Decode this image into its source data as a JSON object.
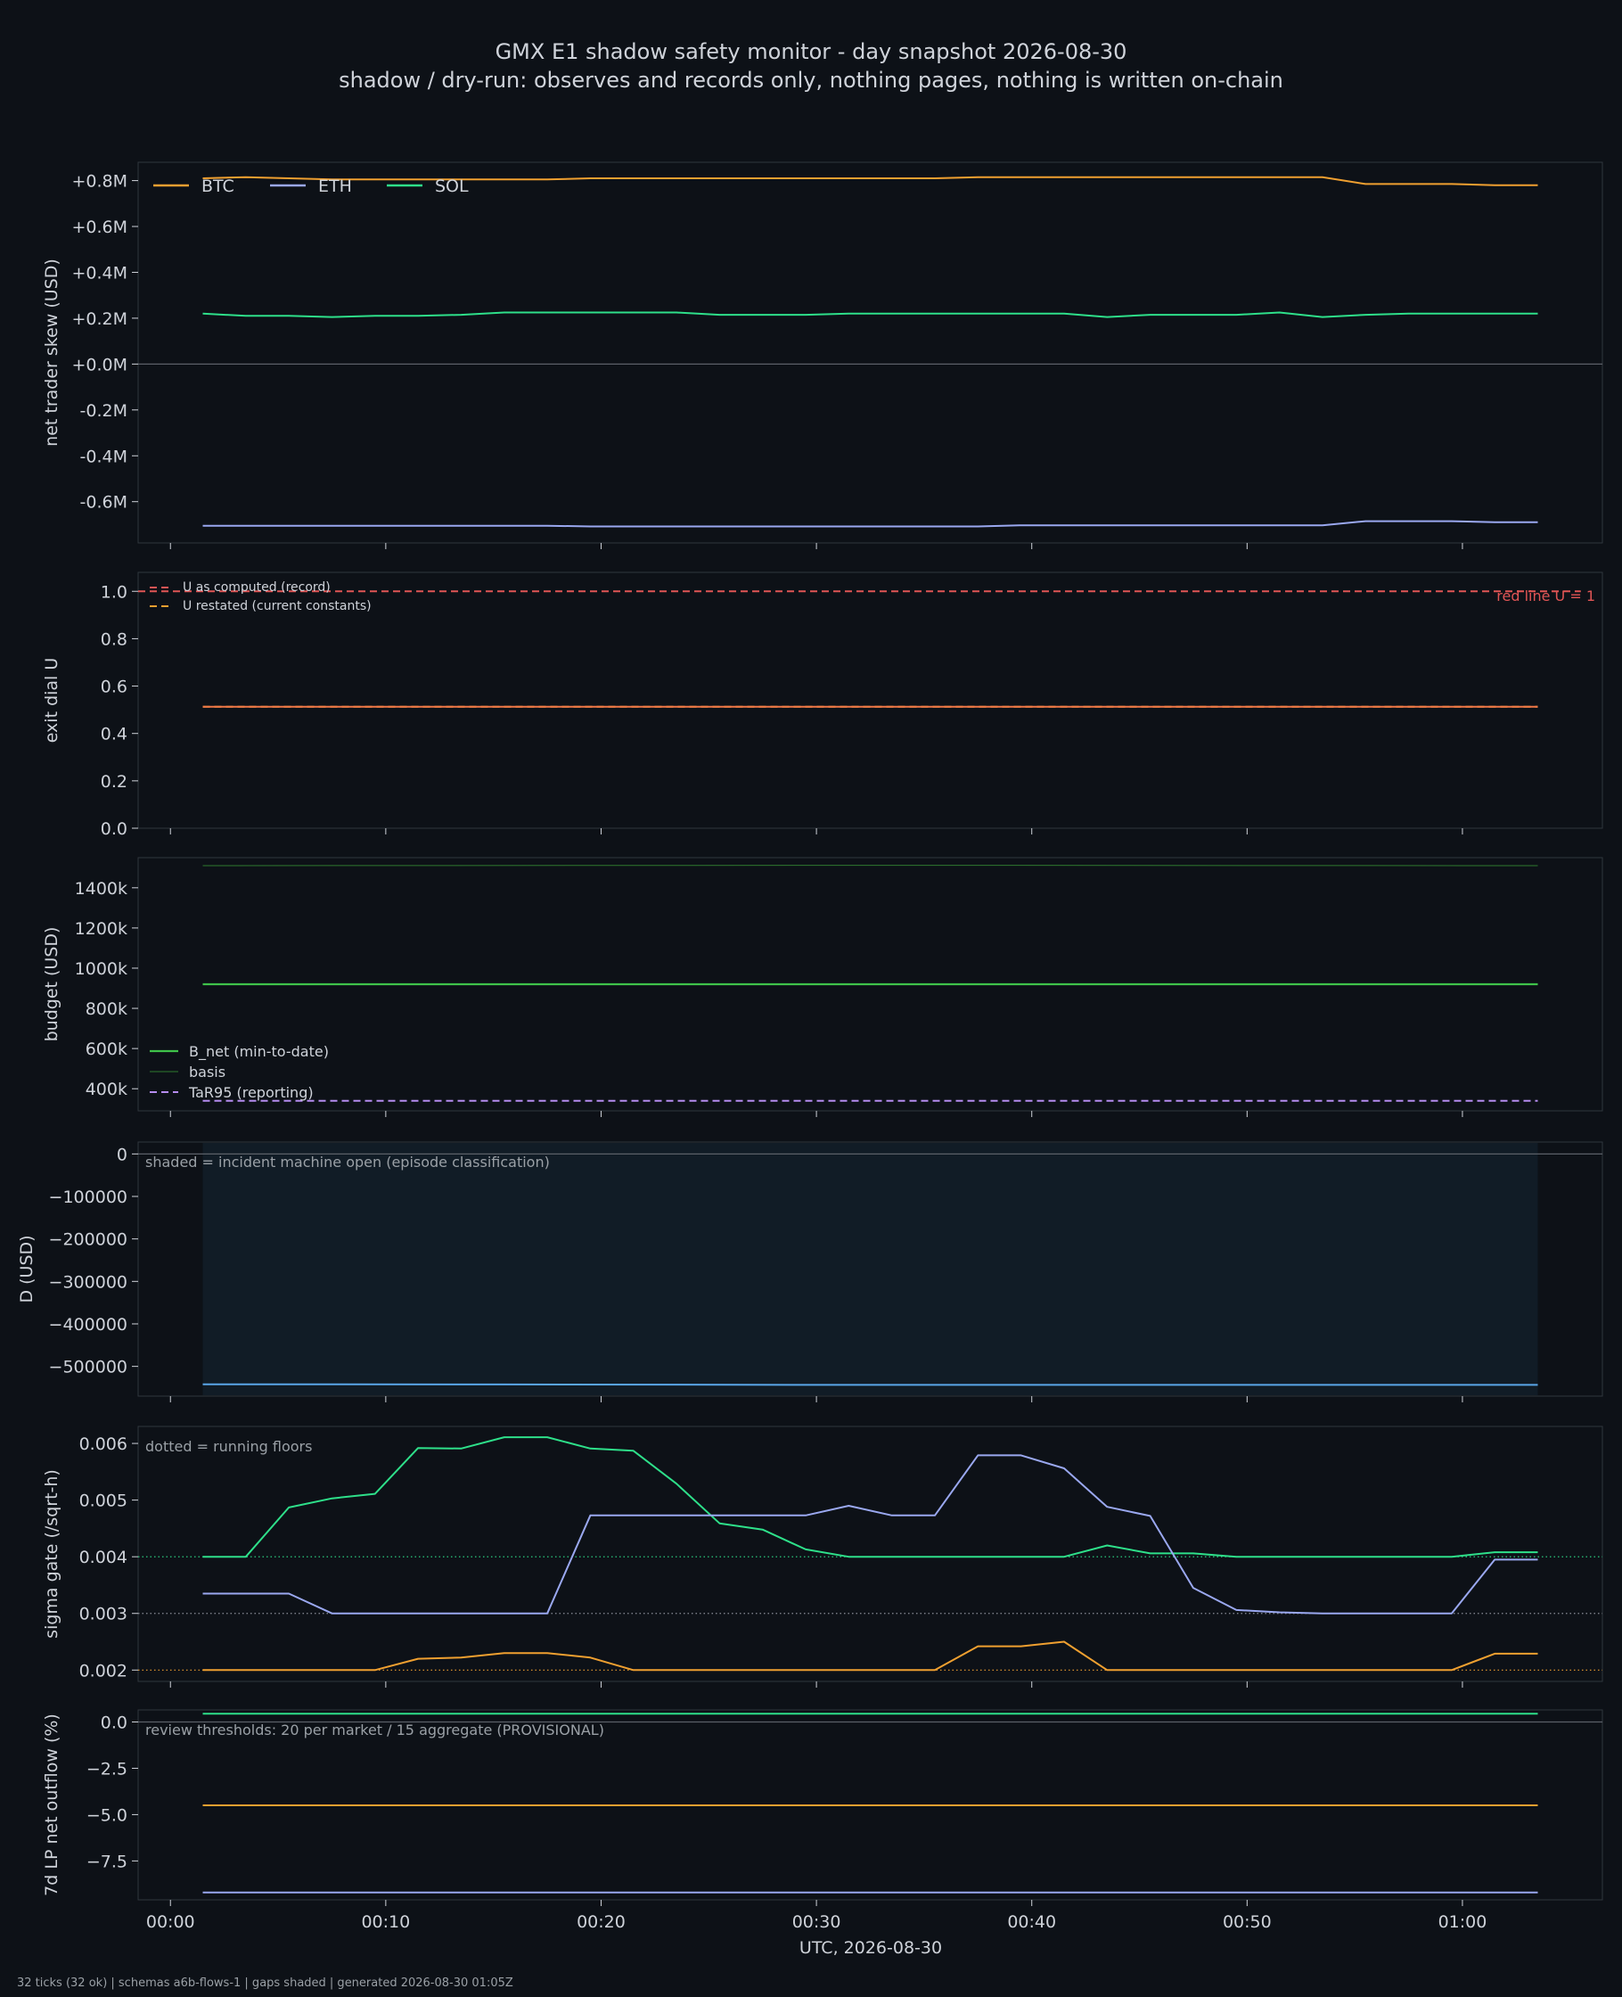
{
  "header": {
    "title": "GMX E1 shadow safety monitor - day snapshot 2026-08-30",
    "subtitle": "shadow / dry-run: observes and records only, nothing pages, nothing is written on-chain"
  },
  "footer": {
    "text": "32 ticks (32 ok) | schemas a6b-flows-1 | gaps shaded | generated 2026-08-30 01:05Z"
  },
  "colors": {
    "background": "#0d1117",
    "panel_border": "#30363d",
    "text": "#cfd3da",
    "muted": "#9aa0a6",
    "btc": "#f0a030",
    "eth": "#9aa8f0",
    "sol": "#2ee08a",
    "redline": "#e05555",
    "b_net": "#3fc24a",
    "basis": "#2f7a2f",
    "tar95": "#b58cf0",
    "d": "#5aa6e8",
    "shade": "#111c26"
  },
  "chart_data": [
    {
      "id": "skew",
      "type": "line",
      "ylabel": "net trader skew (USD)",
      "ylim": [
        -0.78,
        0.88
      ],
      "yticks": [
        {
          "v": 0.8,
          "label": "+0.8M"
        },
        {
          "v": 0.6,
          "label": "+0.6M"
        },
        {
          "v": 0.4,
          "label": "+0.4M"
        },
        {
          "v": 0.2,
          "label": "+0.2M"
        },
        {
          "v": 0.0,
          "label": "+0.0M"
        },
        {
          "v": -0.2,
          "label": "-0.2M"
        },
        {
          "v": -0.4,
          "label": "-0.4M"
        },
        {
          "v": -0.6,
          "label": "-0.6M"
        }
      ],
      "zero_line": true,
      "legend": {
        "placement": "top-left",
        "orientation": "horizontal"
      },
      "x": [
        1.5,
        63.5
      ],
      "series": [
        {
          "name": "BTC",
          "color": "btc",
          "style": "solid",
          "points": [
            [
              1.5,
              0.81
            ],
            [
              3.5,
              0.815
            ],
            [
              5.5,
              0.81
            ],
            [
              7.5,
              0.805
            ],
            [
              11.5,
              0.805
            ],
            [
              17.5,
              0.805
            ],
            [
              19.5,
              0.81
            ],
            [
              35.5,
              0.81
            ],
            [
              37.5,
              0.815
            ],
            [
              53.5,
              0.815
            ],
            [
              55.5,
              0.785
            ],
            [
              59.5,
              0.785
            ],
            [
              61.5,
              0.78
            ],
            [
              63.5,
              0.78
            ]
          ]
        },
        {
          "name": "ETH",
          "color": "eth",
          "style": "solid",
          "points": [
            [
              1.5,
              -0.705
            ],
            [
              17.5,
              -0.705
            ],
            [
              19.5,
              -0.708
            ],
            [
              37.5,
              -0.708
            ],
            [
              39.5,
              -0.703
            ],
            [
              53.5,
              -0.703
            ],
            [
              55.5,
              -0.685
            ],
            [
              59.5,
              -0.685
            ],
            [
              61.5,
              -0.69
            ],
            [
              63.5,
              -0.69
            ]
          ]
        },
        {
          "name": "SOL",
          "color": "sol",
          "style": "solid",
          "points": [
            [
              1.5,
              0.22
            ],
            [
              3.5,
              0.21
            ],
            [
              5.5,
              0.21
            ],
            [
              7.5,
              0.205
            ],
            [
              9.5,
              0.21
            ],
            [
              11.5,
              0.21
            ],
            [
              13.5,
              0.215
            ],
            [
              15.5,
              0.225
            ],
            [
              23.5,
              0.225
            ],
            [
              25.5,
              0.215
            ],
            [
              29.5,
              0.215
            ],
            [
              31.5,
              0.22
            ],
            [
              41.5,
              0.22
            ],
            [
              43.5,
              0.205
            ],
            [
              45.5,
              0.215
            ],
            [
              49.5,
              0.215
            ],
            [
              51.5,
              0.225
            ],
            [
              53.5,
              0.205
            ],
            [
              55.5,
              0.215
            ],
            [
              57.5,
              0.22
            ],
            [
              63.5,
              0.22
            ]
          ]
        }
      ]
    },
    {
      "id": "exit_dial",
      "type": "line",
      "ylabel": "exit dial U",
      "ylim": [
        0,
        1.08
      ],
      "yticks": [
        {
          "v": 1.0,
          "label": "1.0"
        },
        {
          "v": 0.8,
          "label": "0.8"
        },
        {
          "v": 0.6,
          "label": "0.6"
        },
        {
          "v": 0.4,
          "label": "0.4"
        },
        {
          "v": 0.2,
          "label": "0.2"
        },
        {
          "v": 0.0,
          "label": "0.0"
        }
      ],
      "legend": {
        "placement": "top-left",
        "small": true
      },
      "annotation": {
        "text": "red line U = 1",
        "placement": "top-right"
      },
      "series": [
        {
          "name": "U as computed (record)",
          "color": "redline",
          "style": "dashed",
          "points": [
            [
              -1.5,
              1.0
            ],
            [
              65.5,
              1.0
            ]
          ],
          "legend_color": "redline"
        },
        {
          "name": "U restated (current constants)",
          "color": "btc",
          "style": "dashed",
          "points": [
            [
              1.5,
              0.513
            ],
            [
              63.5,
              0.513
            ]
          ]
        },
        {
          "name": "",
          "color": "#f07848",
          "style": "solid",
          "legend": false,
          "points": [
            [
              1.5,
              0.513
            ],
            [
              63.5,
              0.513
            ]
          ]
        }
      ]
    },
    {
      "id": "budget",
      "type": "line",
      "ylabel": "budget (USD)",
      "ylim": [
        290,
        1550
      ],
      "yticks": [
        {
          "v": 1400,
          "label": "1400k"
        },
        {
          "v": 1200,
          "label": "1200k"
        },
        {
          "v": 1000,
          "label": "1000k"
        },
        {
          "v": 800,
          "label": "800k"
        },
        {
          "v": 600,
          "label": "600k"
        },
        {
          "v": 400,
          "label": "400k"
        }
      ],
      "legend": {
        "placement": "bottom-left",
        "vertical": true
      },
      "series": [
        {
          "name": "B_net (min-to-date)",
          "color": "b_net",
          "style": "solid",
          "width": 2.2,
          "points": [
            [
              1.5,
              920
            ],
            [
              63.5,
              920
            ]
          ]
        },
        {
          "name": "basis",
          "color": "basis",
          "style": "solid",
          "width": 1,
          "points": [
            [
              1.5,
              1510
            ],
            [
              33.5,
              1512
            ],
            [
              63.5,
              1510
            ]
          ]
        },
        {
          "name": "TaR95 (reporting)",
          "color": "tar95",
          "style": "dashed",
          "points": [
            [
              1.5,
              340
            ],
            [
              63.5,
              340
            ]
          ]
        }
      ]
    },
    {
      "id": "d_usd",
      "type": "area",
      "ylabel": "D (USD)",
      "ylim": [
        -570000,
        28000
      ],
      "yticks": [
        {
          "v": 0,
          "label": "0"
        },
        {
          "v": -100000,
          "label": "−100000"
        },
        {
          "v": -200000,
          "label": "−200000"
        },
        {
          "v": -300000,
          "label": "−300000"
        },
        {
          "v": -400000,
          "label": "−400000"
        },
        {
          "v": -500000,
          "label": "−500000"
        }
      ],
      "zero_line": true,
      "annotation": {
        "text": "shaded = incident machine open (episode classification)",
        "placement": "top-left"
      },
      "shaded_x": [
        1.5,
        63.5
      ],
      "series": [
        {
          "name": "",
          "color": "d",
          "style": "solid",
          "legend": false,
          "points": [
            [
              1.5,
              -542000
            ],
            [
              15.5,
              -542500
            ],
            [
              31.5,
              -543500
            ],
            [
              47.5,
              -543500
            ],
            [
              63.5,
              -543500
            ]
          ]
        }
      ]
    },
    {
      "id": "sigma",
      "type": "line",
      "ylabel": "sigma gate (/sqrt-h)",
      "ylim": [
        0.0018,
        0.0063
      ],
      "yticks": [
        {
          "v": 0.006,
          "label": "0.006"
        },
        {
          "v": 0.005,
          "label": "0.005"
        },
        {
          "v": 0.004,
          "label": "0.004"
        },
        {
          "v": 0.003,
          "label": "0.003"
        },
        {
          "v": 0.002,
          "label": "0.002"
        }
      ],
      "annotation": {
        "text": "dotted = running floors",
        "placement": "top-left"
      },
      "floors": [
        {
          "v": 0.004,
          "color": "sol"
        },
        {
          "v": 0.003,
          "color": "#8a8f99"
        },
        {
          "v": 0.002,
          "color": "btc"
        }
      ],
      "series": [
        {
          "name": "",
          "color": "sol",
          "style": "solid",
          "legend": false,
          "points": [
            [
              1.5,
              0.004
            ],
            [
              3.5,
              0.004
            ],
            [
              5.5,
              0.00487
            ],
            [
              7.5,
              0.00503
            ],
            [
              9.5,
              0.00511
            ],
            [
              11.5,
              0.00592
            ],
            [
              13.5,
              0.00591
            ],
            [
              15.5,
              0.00611
            ],
            [
              17.5,
              0.00611
            ],
            [
              19.5,
              0.00591
            ],
            [
              21.5,
              0.00587
            ],
            [
              23.5,
              0.00529
            ],
            [
              25.5,
              0.00459
            ],
            [
              27.5,
              0.00448
            ],
            [
              29.5,
              0.00413
            ],
            [
              31.5,
              0.004
            ],
            [
              41.5,
              0.004
            ],
            [
              43.5,
              0.0042
            ],
            [
              45.5,
              0.00406
            ],
            [
              47.5,
              0.00406
            ],
            [
              49.5,
              0.004
            ],
            [
              59.5,
              0.004
            ],
            [
              61.5,
              0.00408
            ],
            [
              63.5,
              0.00408
            ]
          ]
        },
        {
          "name": "",
          "color": "eth",
          "style": "solid",
          "legend": false,
          "points": [
            [
              1.5,
              0.00335
            ],
            [
              5.5,
              0.00335
            ],
            [
              7.5,
              0.003
            ],
            [
              17.5,
              0.003
            ],
            [
              19.5,
              0.00473
            ],
            [
              29.5,
              0.00473
            ],
            [
              31.5,
              0.0049
            ],
            [
              33.5,
              0.00473
            ],
            [
              35.5,
              0.00473
            ],
            [
              37.5,
              0.00579
            ],
            [
              39.5,
              0.00579
            ],
            [
              41.5,
              0.00556
            ],
            [
              43.5,
              0.00488
            ],
            [
              45.5,
              0.00472
            ],
            [
              47.5,
              0.00345
            ],
            [
              49.5,
              0.00306
            ],
            [
              51.5,
              0.00302
            ],
            [
              53.5,
              0.003
            ],
            [
              59.5,
              0.003
            ],
            [
              61.5,
              0.00395
            ],
            [
              63.5,
              0.00395
            ]
          ]
        },
        {
          "name": "",
          "color": "btc",
          "style": "solid",
          "legend": false,
          "points": [
            [
              1.5,
              0.002
            ],
            [
              9.5,
              0.002
            ],
            [
              11.5,
              0.0022
            ],
            [
              13.5,
              0.00222
            ],
            [
              15.5,
              0.0023
            ],
            [
              17.5,
              0.0023
            ],
            [
              19.5,
              0.00222
            ],
            [
              21.5,
              0.002
            ],
            [
              35.5,
              0.002
            ],
            [
              37.5,
              0.00242
            ],
            [
              39.5,
              0.00242
            ],
            [
              41.5,
              0.0025
            ],
            [
              43.5,
              0.002
            ],
            [
              59.5,
              0.002
            ],
            [
              61.5,
              0.00229
            ],
            [
              63.5,
              0.00229
            ]
          ]
        }
      ]
    },
    {
      "id": "lp_outflow",
      "type": "line",
      "ylabel": "7d LP net outflow (%)",
      "ylim": [
        -9.6,
        0.65
      ],
      "yticks": [
        {
          "v": 0.0,
          "label": "0.0"
        },
        {
          "v": -2.5,
          "label": "−2.5"
        },
        {
          "v": -5.0,
          "label": "−5.0"
        },
        {
          "v": -7.5,
          "label": "−7.5"
        }
      ],
      "zero_line": true,
      "annotation": {
        "text": "review thresholds: 20 per market / 15 aggregate (PROVISIONAL)",
        "placement": "top-left"
      },
      "series": [
        {
          "name": "",
          "color": "sol",
          "style": "solid",
          "legend": false,
          "points": [
            [
              1.5,
              0.45
            ],
            [
              63.5,
              0.45
            ]
          ]
        },
        {
          "name": "",
          "color": "btc",
          "style": "solid",
          "legend": false,
          "points": [
            [
              1.5,
              -4.5
            ],
            [
              63.5,
              -4.5
            ]
          ]
        },
        {
          "name": "",
          "color": "eth",
          "style": "solid",
          "legend": false,
          "points": [
            [
              1.5,
              -9.2
            ],
            [
              63.5,
              -9.2
            ]
          ]
        }
      ]
    }
  ],
  "x_axis": {
    "label": "UTC, 2026-08-30",
    "xlim": [
      -1.5,
      66.5
    ],
    "ticks": [
      {
        "v": 0,
        "label": "00:00"
      },
      {
        "v": 10,
        "label": "00:10"
      },
      {
        "v": 20,
        "label": "00:20"
      },
      {
        "v": 30,
        "label": "00:30"
      },
      {
        "v": 40,
        "label": "00:40"
      },
      {
        "v": 50,
        "label": "00:50"
      },
      {
        "v": 60,
        "label": "01:00"
      }
    ]
  }
}
